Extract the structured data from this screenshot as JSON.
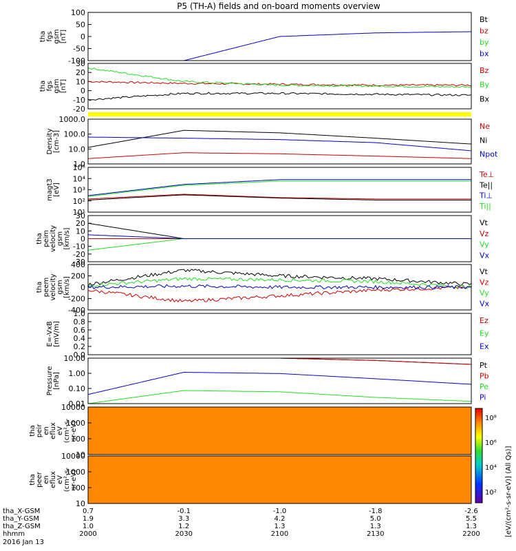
{
  "title": "P5 (TH-A) fields and on-board moments overview",
  "colors": {
    "black": "#000000",
    "red": "#cc0000",
    "green": "#22dd22",
    "blue": "#0000cc",
    "yellow": "#ffff00",
    "panel_border": "#000000"
  },
  "panels": [
    {
      "key": "fgs_gsm",
      "ylabel": [
        "tha",
        "fgs",
        "gsm",
        "[nT]"
      ],
      "ylim": [
        -100,
        100
      ],
      "yticks": [
        "100",
        "50",
        "0",
        "-50",
        "-100"
      ],
      "legend": [
        {
          "text": "Bt",
          "color": "black"
        },
        {
          "text": "bz",
          "color": "red"
        },
        {
          "text": "by",
          "color": "green"
        },
        {
          "text": "bx",
          "color": "blue"
        }
      ]
    },
    {
      "key": "fgs_gsm2",
      "ylabel": [
        "tha",
        "fgs",
        "gsm",
        "[nT]"
      ],
      "ylim": [
        -20,
        30
      ],
      "yticks": [
        "30",
        "20",
        "10",
        "0",
        "-10",
        "-20"
      ],
      "legend": [
        {
          "text": "Bz",
          "color": "red"
        },
        {
          "text": "By",
          "color": "green"
        },
        {
          "text": "Bx",
          "color": "black"
        }
      ]
    },
    {
      "key": "density",
      "ylabel": [
        "Density",
        "[cm-3]"
      ],
      "ylim": [
        0.1,
        1000
      ],
      "log": true,
      "yticks": [
        "1000.0",
        "100.0",
        "10.0",
        "1.0"
      ],
      "legend": [
        {
          "text": "Ne",
          "color": "red"
        },
        {
          "text": "Ni",
          "color": "black"
        },
        {
          "text": "Npot",
          "color": "blue"
        }
      ]
    },
    {
      "key": "temp",
      "ylabel": [
        "magt3",
        "[eV]"
      ],
      "ylim": [
        10,
        100000
      ],
      "log": true,
      "yticks": [
        "10⁵",
        "10⁴",
        "10³",
        "10²",
        "10¹"
      ],
      "legend": [
        {
          "text": "Te⊥",
          "color": "red"
        },
        {
          "text": "Te||",
          "color": "black"
        },
        {
          "text": "Ti⊥",
          "color": "blue"
        },
        {
          "text": "Ti||",
          "color": "green"
        }
      ]
    },
    {
      "key": "peim_vel",
      "ylabel": [
        "tha",
        "peim",
        "velocity",
        "gsm",
        "[km/s]"
      ],
      "ylim": [
        -30,
        30
      ],
      "yticks": [
        "30",
        "20",
        "10",
        "0",
        "-10",
        "-20",
        "-30"
      ],
      "legend": [
        {
          "text": "Vt",
          "color": "black"
        },
        {
          "text": "Vz",
          "color": "red"
        },
        {
          "text": "Vy",
          "color": "green"
        },
        {
          "text": "Vx",
          "color": "blue"
        }
      ]
    },
    {
      "key": "peem_vel",
      "ylabel": [
        "tha",
        "peem",
        "velocity",
        "gsm",
        "[km/s]"
      ],
      "ylim": [
        -400,
        400
      ],
      "yticks": [
        "400",
        "200",
        "0",
        "-200",
        "-400"
      ],
      "legend": [
        {
          "text": "Vt",
          "color": "black"
        },
        {
          "text": "Vz",
          "color": "red"
        },
        {
          "text": "Vy",
          "color": "green"
        },
        {
          "text": "Vx",
          "color": "blue"
        }
      ]
    },
    {
      "key": "efield",
      "ylabel": [
        "E=-VxB",
        "[mV/m]"
      ],
      "ylim": [
        0,
        1
      ],
      "yticks": [
        "1.0",
        "0.8",
        "0.6",
        "0.4",
        "0.2",
        "0.0"
      ],
      "legend": [
        {
          "text": "Ez",
          "color": "red"
        },
        {
          "text": "Ey",
          "color": "green"
        },
        {
          "text": "Ex",
          "color": "blue"
        }
      ]
    },
    {
      "key": "pressure",
      "ylabel": [
        "Pressure",
        "[nPa]"
      ],
      "ylim": [
        0.01,
        30
      ],
      "log": true,
      "yticks": [
        "10.00",
        "1.00",
        "0.10",
        "0.01"
      ],
      "legend": [
        {
          "text": "Pt",
          "color": "black"
        },
        {
          "text": "Pb",
          "color": "red"
        },
        {
          "text": "Pe",
          "color": "green"
        },
        {
          "text": "Pi",
          "color": "blue"
        }
      ]
    },
    {
      "key": "peir",
      "ylabel": [
        "tha",
        "peir",
        "en",
        "eflux",
        "eV",
        "(cm²-s-",
        "sr-eV)"
      ],
      "ylim": [
        10,
        20000
      ],
      "log": true,
      "yticks": [
        "10000",
        "1000",
        "100",
        "10"
      ],
      "spectrogram": true
    },
    {
      "key": "peer",
      "ylabel": [
        "tha",
        "peer",
        "en",
        "eflux",
        "eV",
        "(cm²-s-",
        "sr-eV)"
      ],
      "ylim": [
        10,
        20000
      ],
      "log": true,
      "yticks": [
        "10000",
        "1000",
        "100",
        "10"
      ],
      "spectrogram": true
    }
  ],
  "colorbar": {
    "ticks": [
      "10⁸",
      "10⁶",
      "10⁴",
      "10²"
    ],
    "label": "[eV/(cm²-s-sr-eV)] (All Qs)]"
  },
  "chart_data": [
    {
      "type": "line",
      "panel": "fgs_gsm",
      "x": [
        "2000",
        "2030",
        "2100",
        "2130",
        "2200"
      ],
      "series": [
        {
          "name": "Bt",
          "values": [
            null,
            null,
            null,
            null,
            null
          ]
        },
        {
          "name": "bz",
          "values": [
            null,
            null,
            null,
            null,
            null
          ]
        },
        {
          "name": "bx",
          "values": [
            null,
            -100,
            0,
            15,
            20
          ]
        }
      ],
      "ylim": [
        -100,
        100
      ]
    },
    {
      "type": "line",
      "panel": "fgs_gsm2",
      "x": [
        "2000",
        "2030",
        "2100",
        "2130",
        "2200"
      ],
      "series": [
        {
          "name": "Bz",
          "values": [
            10,
            8,
            7,
            6,
            6
          ]
        },
        {
          "name": "By",
          "values": [
            25,
            10,
            6,
            5,
            4
          ]
        },
        {
          "name": "Bx",
          "values": [
            -10,
            -3,
            -3,
            -4,
            -5
          ]
        }
      ],
      "ylim": [
        -20,
        30
      ]
    },
    {
      "type": "line",
      "panel": "density",
      "x": [
        "2000",
        "2030",
        "2100",
        "2130",
        "2200"
      ],
      "series": [
        {
          "name": "Ni",
          "values": [
            3,
            100,
            60,
            20,
            6
          ]
        },
        {
          "name": "Ne",
          "values": [
            0.3,
            1,
            0.8,
            0.5,
            0.3
          ]
        },
        {
          "name": "Npot",
          "values": [
            25,
            20,
            15,
            8,
            1.5
          ]
        }
      ],
      "ylim": [
        0.1,
        1000
      ],
      "log": true
    },
    {
      "type": "line",
      "panel": "temp",
      "x": [
        "2000",
        "2030",
        "2100",
        "2130",
        "2200"
      ],
      "series": [
        {
          "name": "Ti⊥",
          "values": [
            300,
            3000,
            8000,
            8000,
            8000
          ]
        },
        {
          "name": "Ti||",
          "values": [
            250,
            2500,
            6000,
            6000,
            6000
          ]
        },
        {
          "name": "Te⊥",
          "values": [
            150,
            400,
            200,
            150,
            150
          ]
        },
        {
          "name": "Te||",
          "values": [
            120,
            350,
            180,
            120,
            120
          ]
        }
      ],
      "ylim": [
        10,
        100000
      ],
      "log": true
    },
    {
      "type": "line",
      "panel": "peim_vel",
      "x": [
        "2000",
        "2030",
        "2100",
        "2130",
        "2200"
      ],
      "series": [
        {
          "name": "Vt",
          "values": [
            20,
            0,
            0,
            0,
            0
          ]
        },
        {
          "name": "Vz",
          "values": [
            0,
            0,
            0,
            0,
            0
          ]
        },
        {
          "name": "Vy",
          "values": [
            -15,
            0,
            0,
            0,
            0
          ]
        },
        {
          "name": "Vx",
          "values": [
            5,
            0,
            0,
            0,
            0
          ]
        }
      ],
      "ylim": [
        -30,
        30
      ]
    },
    {
      "type": "line",
      "panel": "peem_vel",
      "x": [
        "2000",
        "2030",
        "2100",
        "2130",
        "2200"
      ],
      "series": [
        {
          "name": "Vt",
          "values": [
            50,
            300,
            200,
            150,
            50
          ]
        },
        {
          "name": "Vz",
          "values": [
            -50,
            -250,
            -150,
            -50,
            0
          ]
        },
        {
          "name": "Vy",
          "values": [
            30,
            150,
            130,
            100,
            0
          ]
        },
        {
          "name": "Vx",
          "values": [
            0,
            20,
            0,
            0,
            0
          ]
        }
      ],
      "ylim": [
        -400,
        400
      ]
    },
    {
      "type": "line",
      "panel": "pressure",
      "x": [
        "2000",
        "2030",
        "2100",
        "2130",
        "2200"
      ],
      "series": [
        {
          "name": "Pt",
          "values": [
            null,
            null,
            30,
            20,
            10
          ]
        },
        {
          "name": "Pb",
          "values": [
            null,
            null,
            30,
            20,
            10
          ]
        },
        {
          "name": "Pi",
          "values": [
            0.05,
            2.5,
            2,
            0.8,
            0.3
          ]
        },
        {
          "name": "Pe",
          "values": [
            0.01,
            0.1,
            0.08,
            0.03,
            0.015
          ]
        }
      ],
      "ylim": [
        0.01,
        30
      ],
      "log": true
    }
  ],
  "xaxis": {
    "rows": [
      {
        "label": "tha_X-GSM",
        "values": [
          "0.7",
          "-0.1",
          "-1.0",
          "-1.8",
          "-2.6"
        ]
      },
      {
        "label": "tha_Y-GSM",
        "values": [
          "1.9",
          "3.3",
          "4.2",
          "5.0",
          "5.5"
        ]
      },
      {
        "label": "tha_Z-GSM",
        "values": [
          "1.0",
          "1.2",
          "1.3",
          "1.3",
          "1.3"
        ]
      },
      {
        "label": "hhmm",
        "values": [
          "2000",
          "2030",
          "2100",
          "2130",
          "2200"
        ]
      }
    ],
    "date": "2016 Jan 13"
  }
}
